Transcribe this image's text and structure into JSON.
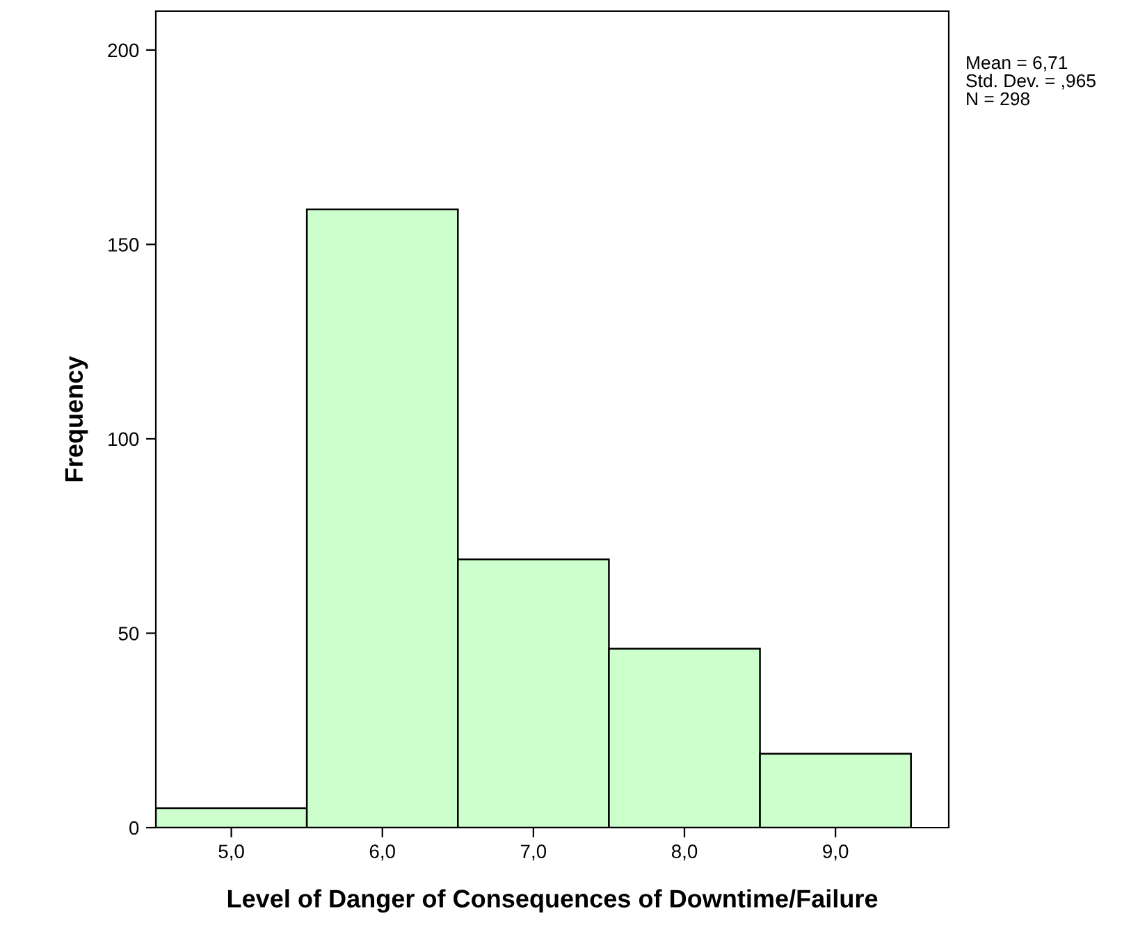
{
  "chart_data": {
    "type": "histogram",
    "xlabel": "Level of Danger of Consequences of Downtime/Failure",
    "ylabel": "Frequency",
    "bins": [
      4.5,
      5.5,
      6.5,
      7.5,
      8.5,
      9.5
    ],
    "values": [
      5,
      159,
      69,
      46,
      19
    ],
    "color": "#ccffcc",
    "xlim": [
      4.5,
      9.75
    ],
    "ylim": [
      0,
      210
    ],
    "xticks": [
      {
        "value": 5,
        "label": "5,0"
      },
      {
        "value": 6,
        "label": "6,0"
      },
      {
        "value": 7,
        "label": "7,0"
      },
      {
        "value": 8,
        "label": "8,0"
      },
      {
        "value": 9,
        "label": "9,0"
      }
    ],
    "yticks": [
      0,
      50,
      100,
      150,
      200
    ],
    "annotations": [
      "Mean = 6,71",
      "Std. Dev. = ,965",
      "N = 298"
    ],
    "grid": false
  }
}
